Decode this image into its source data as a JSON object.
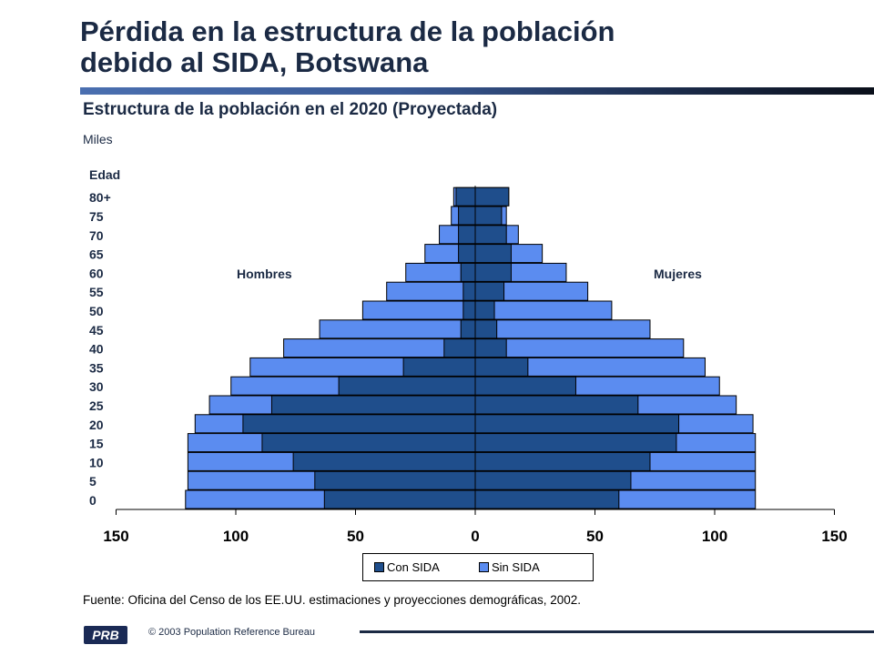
{
  "title_line1": "Pérdida en la estructura de la población",
  "title_line2": "debido al SIDA, Botswana",
  "subtitle": "Estructura de la población en el 2020 (Proyectada)",
  "units": "Miles",
  "source": "Fuente: Oficina del Censo de los EE.UU. estimaciones y proyecciones demográficas, 2002.",
  "footer": {
    "logo_text": "PRB",
    "copyright": "© 2003 Population Reference Bureau"
  },
  "colors": {
    "con_sida": "#1f4e8c",
    "sin_sida": "#5b8cf0",
    "title": "#1b2a44"
  },
  "chart_data": {
    "type": "bar",
    "orientation": "horizontal-population-pyramid",
    "y_axis_label": "Edad",
    "categories": [
      "0",
      "5",
      "10",
      "15",
      "20",
      "25",
      "30",
      "35",
      "40",
      "45",
      "50",
      "55",
      "60",
      "65",
      "70",
      "75",
      "80+"
    ],
    "xlim": [
      -150,
      150
    ],
    "x_ticks": [
      -150,
      -100,
      -50,
      0,
      50,
      100,
      150
    ],
    "x_tick_labels": [
      "150",
      "100",
      "50",
      "0",
      "50",
      "100",
      "150"
    ],
    "side_labels": {
      "left": "Hombres",
      "right": "Mujeres"
    },
    "legend": [
      "Con SIDA",
      "Sin SIDA"
    ],
    "legend_position": "bottom",
    "series": [
      {
        "name": "Con SIDA",
        "side": "Hombres",
        "values": [
          63,
          67,
          76,
          89,
          97,
          85,
          57,
          30,
          13,
          6,
          5,
          5,
          6,
          7,
          7,
          7,
          8
        ]
      },
      {
        "name": "Sin SIDA",
        "side": "Hombres",
        "values": [
          121,
          120,
          120,
          120,
          117,
          111,
          102,
          94,
          80,
          65,
          47,
          37,
          29,
          21,
          15,
          10,
          9
        ]
      },
      {
        "name": "Con SIDA",
        "side": "Mujeres",
        "values": [
          60,
          65,
          73,
          84,
          85,
          68,
          42,
          22,
          13,
          9,
          8,
          12,
          15,
          15,
          13,
          11,
          14
        ]
      },
      {
        "name": "Sin SIDA",
        "side": "Mujeres",
        "values": [
          117,
          117,
          117,
          117,
          116,
          109,
          102,
          96,
          87,
          73,
          57,
          47,
          38,
          28,
          18,
          13,
          14
        ]
      }
    ]
  }
}
